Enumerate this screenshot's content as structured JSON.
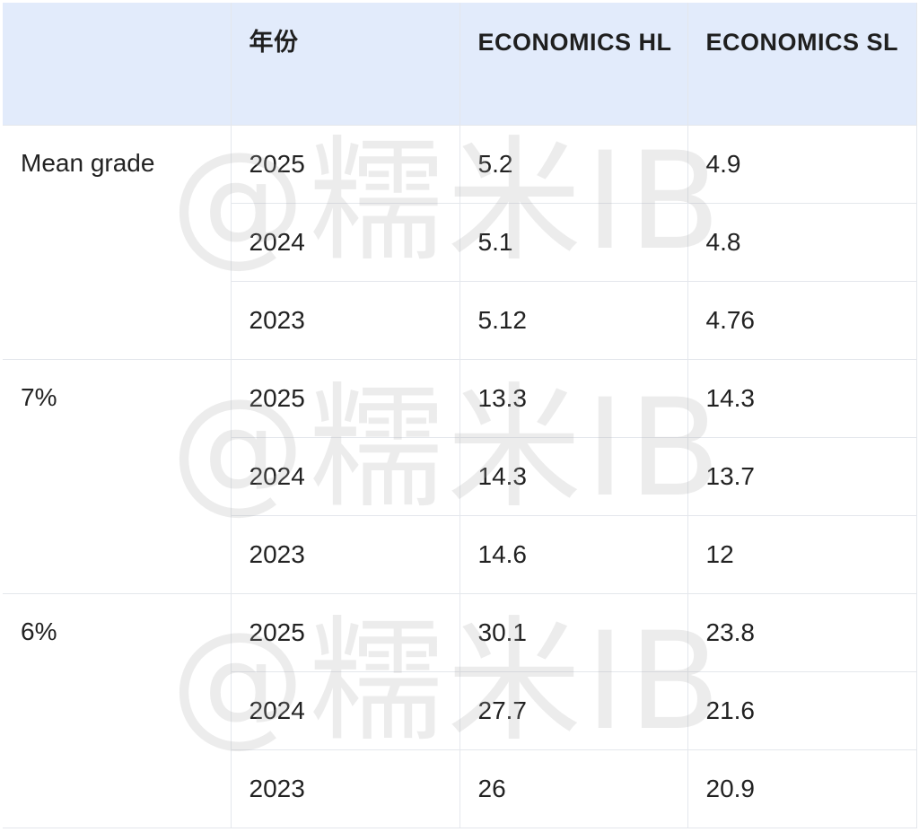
{
  "header": {
    "col0": "",
    "col1": "年份",
    "col2": "ECONOMICS HL",
    "col3": "ECONOMICS SL"
  },
  "groups": [
    {
      "label": "Mean grade",
      "rows": [
        {
          "year": "2025",
          "hl": "5.2",
          "sl": "4.9"
        },
        {
          "year": "2024",
          "hl": "5.1",
          "sl": "4.8"
        },
        {
          "year": "2023",
          "hl": "5.12",
          "sl": "4.76"
        }
      ]
    },
    {
      "label": "7%",
      "rows": [
        {
          "year": "2025",
          "hl": "13.3",
          "sl": "14.3"
        },
        {
          "year": "2024",
          "hl": "14.3",
          "sl": "13.7"
        },
        {
          "year": "2023",
          "hl": "14.6",
          "sl": "12"
        }
      ]
    },
    {
      "label": "6%",
      "rows": [
        {
          "year": "2025",
          "hl": "30.1",
          "sl": "23.8"
        },
        {
          "year": "2024",
          "hl": "27.7",
          "sl": "21.6"
        },
        {
          "year": "2023",
          "hl": "26",
          "sl": "20.9"
        }
      ]
    }
  ],
  "watermark": "@糯米IB"
}
